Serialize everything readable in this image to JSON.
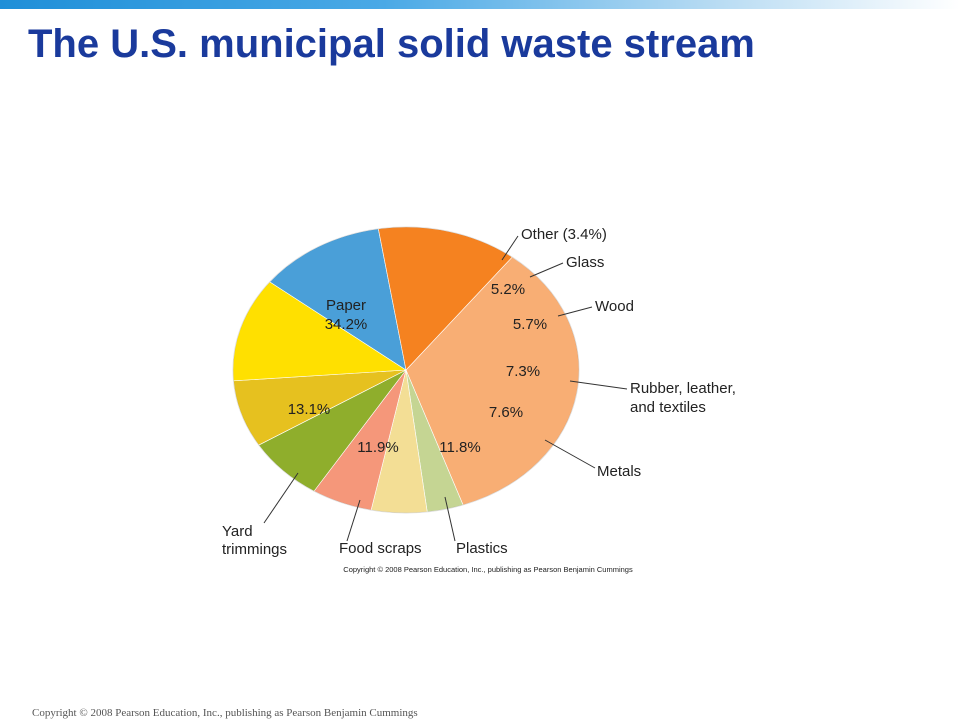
{
  "slide": {
    "title": "The U.S. municipal solid waste stream",
    "footer": "Copyright © 2008 Pearson Education, Inc., publishing as Pearson Benjamin Cummings"
  },
  "chart_data": {
    "type": "pie",
    "title": "",
    "slices": [
      {
        "name": "Paper",
        "label": "Paper",
        "value": 34.2,
        "value_label": "34.2%",
        "color": "#f8ae74"
      },
      {
        "name": "Other",
        "label": "Other (3.4%)",
        "value": 3.4,
        "value_label": "",
        "color": "#c5d593"
      },
      {
        "name": "Glass",
        "label": "Glass",
        "value": 5.2,
        "value_label": "5.2%",
        "color": "#f3de95"
      },
      {
        "name": "Wood",
        "label": "Wood",
        "value": 5.7,
        "value_label": "5.7%",
        "color": "#f5977a"
      },
      {
        "name": "Rubber, leather, and textiles",
        "label": "Rubber, leather, and textiles",
        "value": 7.3,
        "value_label": "7.3%",
        "color": "#8fae2c"
      },
      {
        "name": "Metals",
        "label": "Metals",
        "value": 7.6,
        "value_label": "7.6%",
        "color": "#e6c11f"
      },
      {
        "name": "Plastics",
        "label": "Plastics",
        "value": 11.8,
        "value_label": "11.8%",
        "color": "#ffe000"
      },
      {
        "name": "Food scraps",
        "label": "Food scraps",
        "value": 11.9,
        "value_label": "11.9%",
        "color": "#4a9fd8"
      },
      {
        "name": "Yard trimmings",
        "label": "Yard trimmings",
        "value": 13.1,
        "value_label": "13.1%",
        "color": "#f58220"
      }
    ],
    "copyright": "Copyright © 2008 Pearson Education, Inc., publishing as Pearson Benjamin Cummings"
  }
}
